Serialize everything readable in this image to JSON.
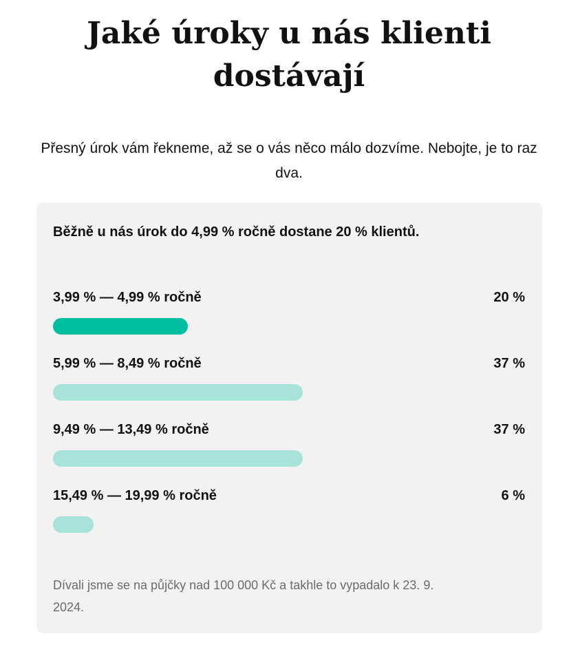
{
  "page": {
    "title": "Jaké úroky u nás klienti dostávají",
    "subtitle": "Přesný úrok vám řekneme, až se o vás něco málo dozvíme. Nebojte, je to raz dva."
  },
  "card": {
    "headline": "Běžně u nás úrok do 4,99 % ročně dostane 20 % klientů.",
    "note": "Dívali jsme se na půjčky nad 100 000 Kč a takhle to vypadalo k 23. 9. 2024."
  },
  "colors": {
    "highlight_bar": "#00bf9f",
    "default_bar": "#a8e3da",
    "card_background": "#f2f2f2"
  },
  "chart_data": {
    "type": "bar",
    "orientation": "horizontal",
    "categories": [
      "3,99 % — 4,99 % ročně",
      "5,99 % — 8,49 % ročně",
      "9,49 % — 13,49 % ročně",
      "15,49 % — 19,99 % ročně"
    ],
    "values": [
      20,
      37,
      37,
      6
    ],
    "value_labels": [
      "20 %",
      "37 %",
      "37 %",
      "6 %"
    ],
    "highlighted_index": 0,
    "xlim": [
      0,
      70
    ],
    "grid": false
  }
}
